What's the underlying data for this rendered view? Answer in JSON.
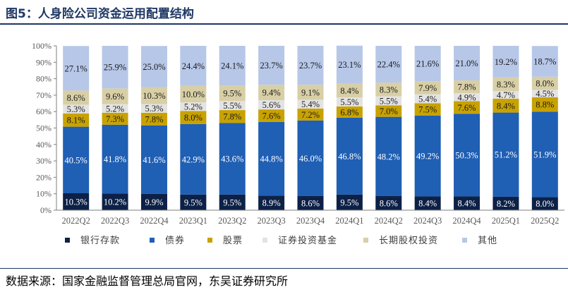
{
  "header": {
    "title": "图5：人身险公司资金运用配置结构"
  },
  "footer": {
    "source": "数据来源：国家金融监督管理总局官网，东吴证券研究所"
  },
  "chart_data": {
    "type": "bar",
    "stacked": true,
    "title": "",
    "xlabel": "",
    "ylabel": "",
    "ylim": [
      0,
      100
    ],
    "y_tick_format": "percent",
    "y_ticks": [
      0,
      10,
      20,
      30,
      40,
      50,
      60,
      70,
      80,
      90,
      100
    ],
    "legend_position": "bottom",
    "categories": [
      "2022Q2",
      "2022Q3",
      "2022Q4",
      "2023Q1",
      "2023Q2",
      "2023Q3",
      "2023Q4",
      "2024Q1",
      "2024Q2",
      "2024Q3",
      "2024Q4",
      "2025Q1",
      "2025Q2"
    ],
    "series": [
      {
        "name": "银行存款",
        "color": "#0d2147",
        "label_color": "#ffffff",
        "values": [
          10.3,
          10.2,
          9.9,
          9.5,
          9.5,
          8.9,
          8.6,
          9.5,
          8.6,
          8.4,
          8.4,
          8.2,
          8.0
        ]
      },
      {
        "name": "债券",
        "color": "#1f5fb4",
        "label_color": "#ffffff",
        "values": [
          40.5,
          41.8,
          41.6,
          42.9,
          43.6,
          44.8,
          46.0,
          46.8,
          48.2,
          49.2,
          50.3,
          51.2,
          51.9
        ]
      },
      {
        "name": "股票",
        "color": "#c8a200",
        "label_color": "#1a1a1a",
        "values": [
          8.1,
          7.3,
          7.8,
          8.0,
          7.8,
          7.6,
          7.2,
          6.8,
          7.0,
          7.5,
          7.6,
          8.4,
          8.8
        ]
      },
      {
        "name": "证券投资基金",
        "color": "#e3e3e3",
        "label_color": "#1a1a1a",
        "values": [
          5.3,
          5.2,
          5.3,
          5.2,
          5.5,
          5.6,
          5.4,
          5.5,
          5.5,
          5.4,
          4.9,
          4.7,
          4.5
        ]
      },
      {
        "name": "长期股权投资",
        "color": "#d8cfa6",
        "label_color": "#1a1a1a",
        "values": [
          8.6,
          9.6,
          10.3,
          10.0,
          9.5,
          9.4,
          9.1,
          8.4,
          8.3,
          7.9,
          7.8,
          8.3,
          8.0
        ]
      },
      {
        "name": "其他",
        "color": "#b7c7e8",
        "label_color": "#1a1a1a",
        "values": [
          27.1,
          25.9,
          25.0,
          24.4,
          24.1,
          23.7,
          23.7,
          23.1,
          22.4,
          21.6,
          21.0,
          19.2,
          18.7
        ]
      }
    ]
  }
}
